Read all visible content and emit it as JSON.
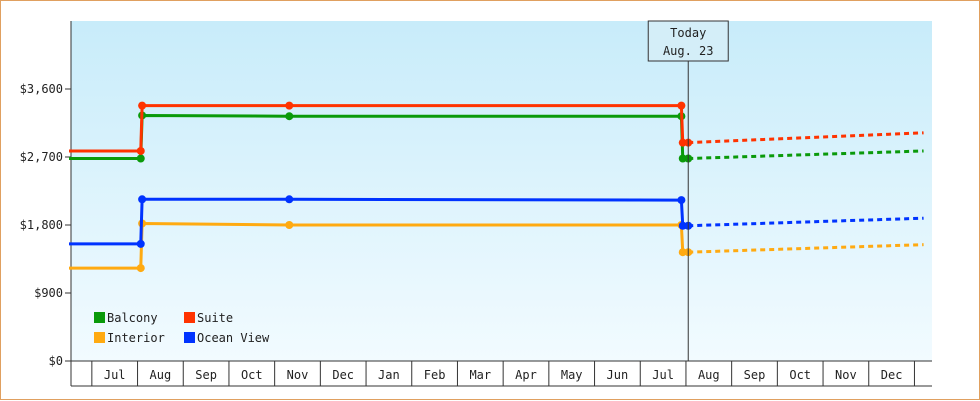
{
  "chart_data": {
    "type": "line",
    "title": "",
    "xlabel": "",
    "ylabel": "",
    "ylim": [
      0,
      4500
    ],
    "y_ticks": [
      0,
      900,
      1800,
      2700,
      3600
    ],
    "y_tick_labels": [
      "$0",
      "$900",
      "$1,800",
      "$2,700",
      "$3,600"
    ],
    "x_months": [
      "Jul",
      "Aug",
      "Sep",
      "Oct",
      "Nov",
      "Dec",
      "Jan",
      "Feb",
      "Mar",
      "Apr",
      "May",
      "Jun",
      "Jul",
      "Aug",
      "Sep",
      "Oct",
      "Nov",
      "Dec"
    ],
    "x_range_months": [
      0,
      18.7
    ],
    "today": {
      "line1": "Today",
      "line2": "Aug. 23",
      "x": 13.55
    },
    "background_gradient": [
      "#c8ecfa",
      "#f2fbff"
    ],
    "legend_position": "bottom-left",
    "series": [
      {
        "name": "Balcony",
        "color": "#0a9a0a",
        "points": [
          [
            0,
            2680
          ],
          [
            1.57,
            2680
          ],
          [
            1.6,
            3250
          ],
          [
            4.82,
            3240
          ],
          [
            13.4,
            3240
          ],
          [
            13.43,
            2680
          ],
          [
            13.55,
            2680
          ]
        ],
        "markers": [
          1.57,
          1.6,
          4.82,
          13.4,
          13.43,
          13.55
        ],
        "forecast": [
          [
            13.55,
            2680
          ],
          [
            18.7,
            2780
          ]
        ]
      },
      {
        "name": "Suite",
        "color": "#ff3300",
        "points": [
          [
            0,
            2780
          ],
          [
            1.57,
            2780
          ],
          [
            1.6,
            3380
          ],
          [
            4.82,
            3380
          ],
          [
            13.4,
            3380
          ],
          [
            13.43,
            2890
          ],
          [
            13.55,
            2890
          ]
        ],
        "markers": [
          1.57,
          1.6,
          4.82,
          13.4,
          13.43,
          13.55
        ],
        "forecast": [
          [
            13.55,
            2890
          ],
          [
            18.7,
            3020
          ]
        ]
      },
      {
        "name": "Interior",
        "color": "#ffaa11",
        "points": [
          [
            0,
            1230
          ],
          [
            1.57,
            1230
          ],
          [
            1.6,
            1820
          ],
          [
            4.82,
            1800
          ],
          [
            13.4,
            1800
          ],
          [
            13.43,
            1440
          ],
          [
            13.55,
            1440
          ]
        ],
        "markers": [
          1.57,
          1.6,
          4.82,
          13.4,
          13.43,
          13.55
        ],
        "forecast": [
          [
            13.55,
            1440
          ],
          [
            18.7,
            1540
          ]
        ]
      },
      {
        "name": "Ocean View",
        "color": "#0033ff",
        "points": [
          [
            0,
            1550
          ],
          [
            1.57,
            1550
          ],
          [
            1.6,
            2140
          ],
          [
            4.82,
            2140
          ],
          [
            13.4,
            2130
          ],
          [
            13.43,
            1790
          ],
          [
            13.55,
            1790
          ]
        ],
        "markers": [
          1.57,
          1.6,
          4.82,
          13.4,
          13.43,
          13.55
        ],
        "forecast": [
          [
            13.55,
            1790
          ],
          [
            18.7,
            1890
          ]
        ]
      }
    ]
  }
}
